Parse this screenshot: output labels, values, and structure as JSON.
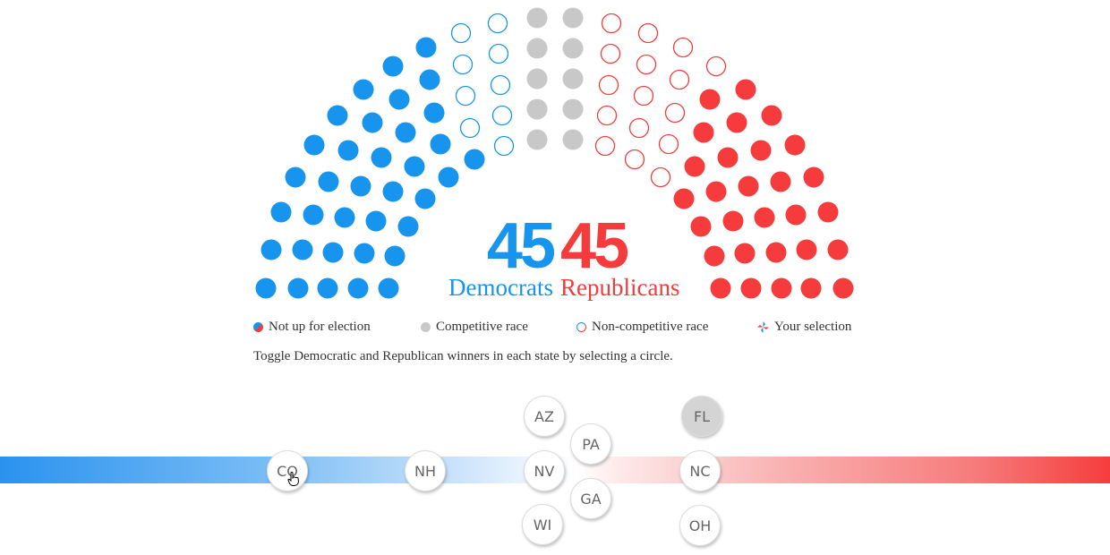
{
  "colors": {
    "dem": "#1795ee",
    "rep": "#f53b3b",
    "competitive": "#c8c8c8"
  },
  "tally": {
    "dem_count": "45",
    "dem_label": "Democrats",
    "rep_count": "45",
    "rep_label": "Republicans"
  },
  "seats": {
    "dem": [
      "f",
      "f",
      "f",
      "f",
      "f",
      "f",
      "f",
      "f",
      "f",
      "f",
      "f",
      "f",
      "f",
      "f",
      "f",
      "f",
      "f",
      "f",
      "f",
      "f",
      "f",
      "f",
      "f",
      "f",
      "f",
      "f",
      "f",
      "f",
      "f",
      "f",
      "f",
      "f",
      "f",
      "f",
      "f",
      "f",
      "o",
      "o",
      "o",
      "o",
      "o",
      "o",
      "o",
      "o",
      "o"
    ],
    "rep": [
      "f",
      "f",
      "f",
      "f",
      "f",
      "f",
      "f",
      "f",
      "f",
      "f",
      "f",
      "f",
      "f",
      "f",
      "f",
      "f",
      "f",
      "f",
      "f",
      "f",
      "f",
      "f",
      "f",
      "f",
      "o",
      "f",
      "f",
      "f",
      "o",
      "o",
      "f",
      "f",
      "o",
      "o",
      "o",
      "o",
      "o",
      "o",
      "o",
      "o",
      "o",
      "o",
      "o",
      "o",
      "o"
    ],
    "competitive_count": 10
  },
  "legend": {
    "not_up": "Not up for election",
    "competitive": "Competitive race",
    "non_competitive": "Non-competitive race",
    "selection": "Your selection"
  },
  "instructions": "Toggle Democratic and Republican winners in each state by selecting a circle.",
  "states": [
    {
      "abbr": "CO",
      "lean": "dem"
    },
    {
      "abbr": "NH",
      "lean": "dem"
    },
    {
      "abbr": "AZ",
      "lean": "tossup"
    },
    {
      "abbr": "NV",
      "lean": "tossup"
    },
    {
      "abbr": "WI",
      "lean": "tossup"
    },
    {
      "abbr": "PA",
      "lean": "tossup"
    },
    {
      "abbr": "GA",
      "lean": "tossup"
    },
    {
      "abbr": "FL",
      "lean": "rep",
      "highlighted": true
    },
    {
      "abbr": "NC",
      "lean": "rep"
    },
    {
      "abbr": "OH",
      "lean": "rep"
    }
  ]
}
